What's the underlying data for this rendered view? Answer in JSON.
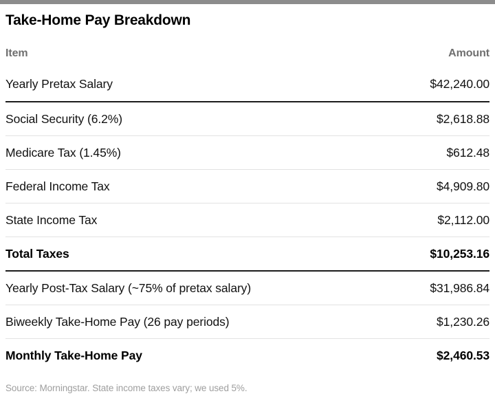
{
  "page": {
    "title": "Take-Home Pay Breakdown",
    "source_note": "Source: Morningstar. State income taxes vary; we used 5%."
  },
  "table": {
    "columns": {
      "item": "Item",
      "amount": "Amount"
    },
    "rows": [
      {
        "item": "Yearly Pretax Salary",
        "amount": "$42,240.00",
        "bold": false,
        "divider": "dark"
      },
      {
        "item": "Social Security (6.2%)",
        "amount": "$2,618.88",
        "bold": false,
        "divider": "light"
      },
      {
        "item": "Medicare Tax (1.45%)",
        "amount": "$612.48",
        "bold": false,
        "divider": "light"
      },
      {
        "item": "Federal Income Tax",
        "amount": "$4,909.80",
        "bold": false,
        "divider": "light"
      },
      {
        "item": "State Income Tax",
        "amount": "$2,112.00",
        "bold": false,
        "divider": "light"
      },
      {
        "item": "Total Taxes",
        "amount": "$10,253.16",
        "bold": true,
        "divider": "dark"
      },
      {
        "item": "Yearly Post-Tax Salary (~75% of pretax salary)",
        "amount": "$31,986.84",
        "bold": false,
        "divider": "light"
      },
      {
        "item": "Biweekly Take-Home Pay (26 pay periods)",
        "amount": "$1,230.26",
        "bold": false,
        "divider": "light"
      },
      {
        "item": "Monthly Take-Home Pay",
        "amount": "$2,460.53",
        "bold": true,
        "divider": "none"
      }
    ]
  },
  "colors": {
    "top_bar": "#8c8c8c",
    "header_text": "#6f6f6f",
    "body_text": "#111111",
    "source_text": "#9e9e9e",
    "dark_rule": "#1a1a1a",
    "light_rule": "#e2e2e2"
  },
  "chart_data": {
    "type": "table",
    "title": "Take-Home Pay Breakdown",
    "columns": [
      "Item",
      "Amount"
    ],
    "rows": [
      [
        "Yearly Pretax Salary",
        42240.0
      ],
      [
        "Social Security (6.2%)",
        2618.88
      ],
      [
        "Medicare Tax (1.45%)",
        612.48
      ],
      [
        "Federal Income Tax",
        4909.8
      ],
      [
        "State Income Tax",
        2112.0
      ],
      [
        "Total Taxes",
        10253.16
      ],
      [
        "Yearly Post-Tax Salary (~75% of pretax salary)",
        31986.84
      ],
      [
        "Biweekly Take-Home Pay (26 pay periods)",
        1230.26
      ],
      [
        "Monthly Take-Home Pay",
        2460.53
      ]
    ],
    "emphasized_rows": [
      "Total Taxes",
      "Monthly Take-Home Pay"
    ],
    "source": "Source: Morningstar. State income taxes vary; we used 5%."
  }
}
